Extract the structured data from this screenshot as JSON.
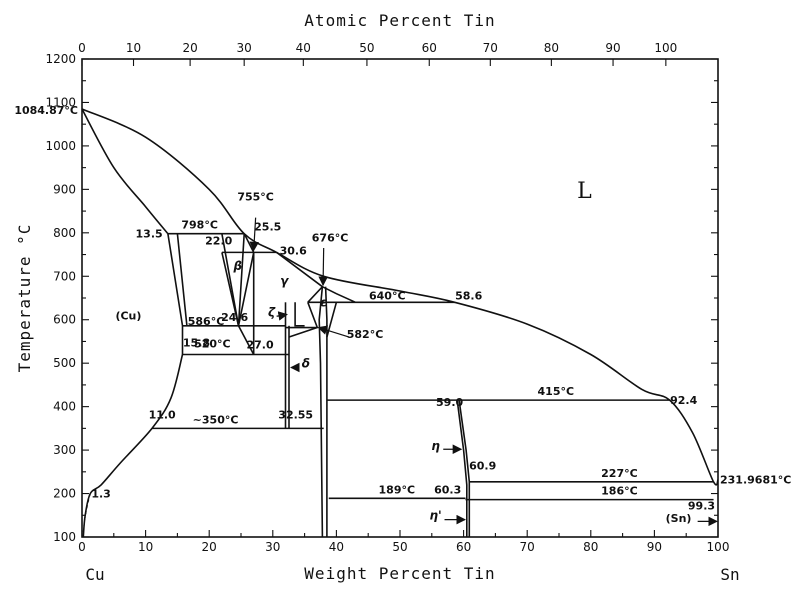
{
  "chart_data": {
    "type": "phase-diagram",
    "xlabel_bottom": "Weight Percent Tin",
    "xlabel_top": "Atomic Percent Tin",
    "ylabel": "Temperature °C",
    "xlim": [
      0,
      100
    ],
    "ylim": [
      100,
      1200
    ],
    "bottom_ticks": [
      "0",
      "10",
      "20",
      "30",
      "40",
      "50",
      "60",
      "70",
      "80",
      "90",
      "100"
    ],
    "top_ticks": [
      "0",
      "10",
      "20",
      "30",
      "40",
      "50",
      "60",
      "70",
      "80",
      "90",
      "100"
    ],
    "y_ticks": [
      "100",
      "200",
      "300",
      "400",
      "500",
      "600",
      "700",
      "800",
      "900",
      "1000",
      "1100",
      "1200"
    ],
    "element_left": "Cu",
    "element_right": "Sn",
    "phases": {
      "liquid": "L",
      "cu": "(Cu)",
      "beta": "β",
      "gamma": "γ",
      "zeta": "ζ",
      "epsilon": "ε",
      "delta": "δ",
      "eta": "η",
      "eta_prime": "η'",
      "sn": "(Sn)"
    },
    "annotations": {
      "cu_melt": "1084.87°C",
      "sn_melt": "231.9681°C",
      "t798": "798°C",
      "t755": "755°C",
      "t676": "676°C",
      "t640": "640°C",
      "t586": "586°C",
      "t582": "582°C",
      "t520": "520°C",
      "t415": "415°C",
      "t350": "~350°C",
      "t227": "227°C",
      "t189": "189°C",
      "t186": "186°C",
      "c13_5": "13.5",
      "c22_0": "22.0",
      "c25_5": "25.5",
      "c30_6": "30.6",
      "c58_6": "58.6",
      "c24_6": "24.6",
      "c15_8": "15.8",
      "c27_0": "27.0",
      "c11_0": "11.0",
      "c32_55": "32.55",
      "c59_0": "59.0",
      "c92_4": "92.4",
      "c60_9": "60.9",
      "c60_3": "60.3",
      "c99_3": "99.3",
      "c1_3": "1.3"
    },
    "invariant_lines": [
      {
        "t": 798,
        "x1": 13.5,
        "x2": 25.5
      },
      {
        "t": 755,
        "x1": 22.0,
        "x2": 30.6
      },
      {
        "t": 640,
        "x1": 35.5,
        "x2": 58.6
      },
      {
        "t": 586,
        "x1": 15.8,
        "x2": 32.0
      },
      {
        "t": 582,
        "x1": 32.0,
        "x2": 37.0
      },
      {
        "t": 520,
        "x1": 15.8,
        "x2": 32.55
      },
      {
        "t": 415,
        "x1": 38.6,
        "x2": 92.4
      },
      {
        "t": 350,
        "x1": 11.0,
        "x2": 38.0
      },
      {
        "t": 227,
        "x1": 60.9,
        "x2": 99.3
      },
      {
        "t": 189,
        "x1": 38.8,
        "x2": 60.3
      },
      {
        "t": 186,
        "x1": 60.3,
        "x2": 99.3
      }
    ],
    "liquidus": [
      [
        0,
        1084.87
      ],
      [
        10,
        1020
      ],
      [
        20,
        900
      ],
      [
        25.5,
        798
      ],
      [
        30.6,
        755
      ],
      [
        38,
        700
      ],
      [
        50,
        666
      ],
      [
        58.6,
        640
      ],
      [
        70,
        590
      ],
      [
        80,
        520
      ],
      [
        88,
        440
      ],
      [
        92.4,
        415
      ],
      [
        96,
        340
      ],
      [
        99.3,
        227
      ],
      [
        100,
        231.97
      ]
    ],
    "cu_solidus": [
      [
        0,
        1084.87
      ],
      [
        5,
        950
      ],
      [
        10,
        860
      ],
      [
        13.5,
        798
      ]
    ],
    "cu_solvus": [
      [
        15.8,
        520
      ],
      [
        14,
        420
      ],
      [
        11,
        350
      ],
      [
        6,
        270
      ],
      [
        3,
        220
      ],
      [
        1.3,
        200
      ],
      [
        0.5,
        150
      ],
      [
        0.2,
        100
      ]
    ],
    "grid": false,
    "legend": "none"
  }
}
